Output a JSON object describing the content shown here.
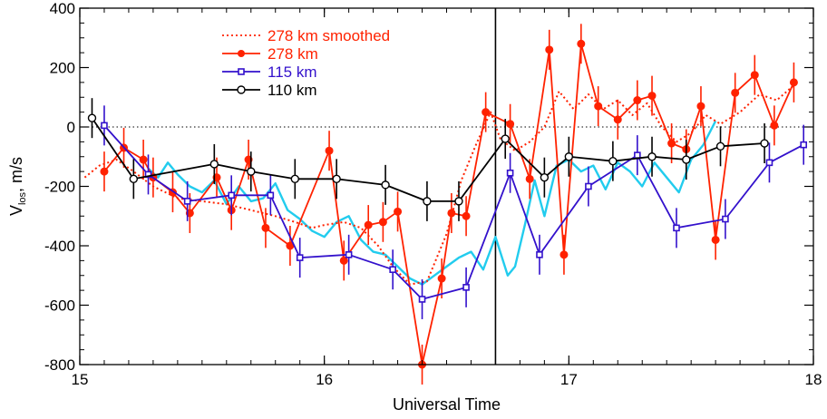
{
  "chart_data": {
    "type": "line",
    "title": "",
    "xlabel": "Universal Time",
    "ylabel": "V_los, m/s",
    "ylabel_main": "V",
    "ylabel_sub": "los",
    "ylabel_rest": ", m/s",
    "xlim": [
      15,
      18
    ],
    "ylim": [
      -800,
      400
    ],
    "xticks": [
      15,
      16,
      17,
      18
    ],
    "yticks": [
      -800,
      -600,
      -400,
      -200,
      0,
      200,
      400
    ],
    "xtick_labels": [
      "15",
      "16",
      "17",
      "18"
    ],
    "ytick_labels": [
      "-800",
      "-600",
      "-400",
      "-200",
      "0",
      "200",
      "400"
    ],
    "zero_line": 0,
    "vertical_line_x": 16.7,
    "grid": false,
    "legend_position": "top-left",
    "series": [
      {
        "name": "278 km smoothed",
        "color": "#ff2200",
        "style": "dotted",
        "x": [
          15.02,
          15.08,
          15.15,
          15.22,
          15.3,
          15.4,
          15.5,
          15.6,
          15.7,
          15.8,
          15.88,
          15.95,
          16.0,
          16.08,
          16.15,
          16.22,
          16.28,
          16.35,
          16.42,
          16.5,
          16.56,
          16.62,
          16.68,
          16.72,
          16.78,
          16.84,
          16.9,
          16.96,
          17.02,
          17.08,
          17.14,
          17.2,
          17.26,
          17.32,
          17.38,
          17.44,
          17.5,
          17.56,
          17.62,
          17.7,
          17.78,
          17.85,
          17.92
        ],
        "y": [
          -170,
          -130,
          -110,
          -150,
          -200,
          -240,
          -250,
          -260,
          -280,
          -300,
          -320,
          -340,
          -330,
          -320,
          -340,
          -400,
          -470,
          -530,
          -520,
          -360,
          -180,
          -60,
          50,
          -40,
          -80,
          -50,
          0,
          120,
          60,
          110,
          60,
          90,
          40,
          80,
          0,
          -50,
          -20,
          40,
          10,
          50,
          110,
          90,
          140
        ]
      },
      {
        "name": "278 km",
        "color": "#ff2200",
        "style": "solid",
        "marker": "filled-circle",
        "x": [
          15.1,
          15.18,
          15.26,
          15.3,
          15.38,
          15.45,
          15.56,
          15.62,
          15.69,
          15.76,
          15.86,
          16.02,
          16.08,
          16.18,
          16.24,
          16.3,
          16.4,
          16.48,
          16.52,
          16.58,
          16.66,
          16.76,
          16.84,
          16.92,
          16.98,
          17.05,
          17.12,
          17.2,
          17.28,
          17.34,
          17.42,
          17.48,
          17.54,
          17.6,
          17.68,
          17.76,
          17.84,
          17.92
        ],
        "y": [
          -150,
          -70,
          -110,
          -170,
          -220,
          -290,
          -170,
          -280,
          -110,
          -340,
          -400,
          -80,
          -450,
          -330,
          -320,
          -285,
          -800,
          -510,
          -290,
          -300,
          50,
          10,
          -175,
          260,
          -430,
          280,
          70,
          25,
          90,
          105,
          -55,
          -75,
          70,
          -380,
          115,
          175,
          5,
          150
        ]
      },
      {
        "name": "115 km",
        "color": "#3311cc",
        "style": "solid",
        "marker": "square",
        "x": [
          15.1,
          15.28,
          15.44,
          15.62,
          15.78,
          15.9,
          16.1,
          16.28,
          16.4,
          16.58,
          16.76,
          16.88,
          17.08,
          17.28,
          17.44,
          17.64,
          17.82,
          17.96
        ],
        "y": [
          5,
          -160,
          -250,
          -230,
          -230,
          -440,
          -430,
          -480,
          -580,
          -540,
          -155,
          -430,
          -200,
          -95,
          -340,
          -310,
          -120,
          -60
        ]
      },
      {
        "name": "110 km",
        "color": "#000000",
        "style": "solid",
        "marker": "open-circle",
        "x": [
          15.05,
          15.22,
          15.55,
          15.7,
          15.88,
          16.05,
          16.25,
          16.42,
          16.55,
          16.74,
          16.9,
          17.0,
          17.18,
          17.34,
          17.48,
          17.62,
          17.8
        ],
        "y": [
          30,
          -175,
          -125,
          -150,
          -175,
          -175,
          -195,
          -250,
          -250,
          -40,
          -170,
          -100,
          -115,
          -100,
          -110,
          -65,
          -55
        ]
      },
      {
        "name": "",
        "color": "#22ccee",
        "style": "solid",
        "x": [
          15.28,
          15.32,
          15.36,
          15.4,
          15.45,
          15.5,
          15.55,
          15.6,
          15.65,
          15.7,
          15.75,
          15.8,
          15.85,
          15.9,
          15.95,
          16.0,
          16.05,
          16.1,
          16.15,
          16.2,
          16.25,
          16.3,
          16.35,
          16.4,
          16.45,
          16.5,
          16.55,
          16.6,
          16.65,
          16.7,
          16.75,
          16.78,
          16.82,
          16.86,
          16.9,
          16.95,
          17.0,
          17.05,
          17.1,
          17.15,
          17.2,
          17.25,
          17.3,
          17.35,
          17.4,
          17.45,
          17.5,
          17.55,
          17.6
        ],
        "y": [
          -140,
          -170,
          -120,
          -160,
          -200,
          -220,
          -180,
          -260,
          -200,
          -250,
          -240,
          -190,
          -280,
          -310,
          -350,
          -370,
          -320,
          -300,
          -380,
          -420,
          -430,
          -470,
          -510,
          -530,
          -500,
          -470,
          -440,
          -420,
          -480,
          -370,
          -500,
          -470,
          -330,
          -180,
          -300,
          -130,
          -110,
          -150,
          -130,
          -210,
          -120,
          -150,
          -200,
          -120,
          -170,
          -220,
          -110,
          -60,
          20
        ]
      }
    ]
  }
}
